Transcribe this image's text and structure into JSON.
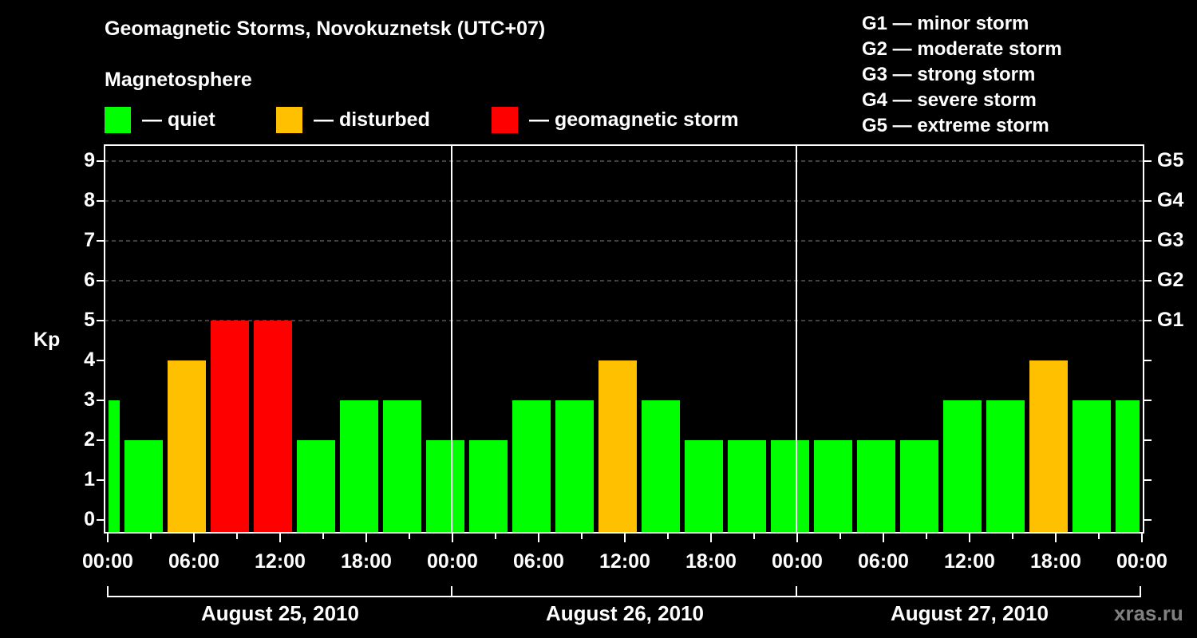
{
  "header": {
    "title": "Geomagnetic Storms, Novokuznetsk (UTC+07)",
    "subtitle": "Magnetosphere"
  },
  "legend": [
    {
      "label": "— quiet",
      "color": "#00FF00"
    },
    {
      "label": "— disturbed",
      "color": "#FFC000"
    },
    {
      "label": "— geomagnetic storm",
      "color": "#FF0000"
    }
  ],
  "g_scale": [
    "G1 — minor storm",
    "G2 — moderate storm",
    "G3 — strong storm",
    "G4 — severe storm",
    "G5 — extreme storm"
  ],
  "axes": {
    "y_label": "Kp",
    "y_ticks": [
      "0",
      "1",
      "2",
      "3",
      "4",
      "5",
      "6",
      "7",
      "8",
      "9"
    ],
    "y_right_ticks": [
      "G1",
      "G2",
      "G3",
      "G4",
      "G5"
    ],
    "x_ticks": [
      "00:00",
      "06:00",
      "12:00",
      "18:00",
      "00:00",
      "06:00",
      "12:00",
      "18:00",
      "00:00",
      "06:00",
      "12:00",
      "18:00",
      "00:00"
    ],
    "days": [
      "August 25, 2010",
      "August 26, 2010",
      "August 27, 2010"
    ]
  },
  "watermark": "xras.ru",
  "colors": {
    "quiet": "#00FF00",
    "disturbed": "#FFC000",
    "storm": "#FF0000",
    "background": "#000000",
    "grid": "#808080"
  },
  "chart_data": {
    "type": "bar",
    "title": "Geomagnetic Storms, Novokuznetsk (UTC+07)",
    "xlabel": "",
    "ylabel": "Kp",
    "ylim": [
      0,
      9
    ],
    "grid": "dashed horizontal at Kp 5-9",
    "legend_position": "top",
    "categories": [
      "Aug 25 00:00-01:00",
      "Aug 25 01:00",
      "Aug 25 04:00",
      "Aug 25 07:00",
      "Aug 25 10:00",
      "Aug 25 13:00",
      "Aug 25 16:00",
      "Aug 25 19:00",
      "Aug 25 22:00",
      "Aug 26 01:00",
      "Aug 26 04:00",
      "Aug 26 07:00",
      "Aug 26 10:00",
      "Aug 26 13:00",
      "Aug 26 16:00",
      "Aug 26 19:00",
      "Aug 26 22:00",
      "Aug 27 01:00",
      "Aug 27 04:00",
      "Aug 27 07:00",
      "Aug 27 10:00",
      "Aug 27 13:00",
      "Aug 27 16:00",
      "Aug 27 19:00",
      "Aug 27 22:00"
    ],
    "values": [
      3,
      2,
      4,
      5,
      5,
      2,
      3,
      3,
      2,
      2,
      3,
      3,
      4,
      3,
      2,
      2,
      2,
      2,
      2,
      2,
      3,
      3,
      4,
      3,
      3
    ],
    "status": [
      "quiet",
      "quiet",
      "disturbed",
      "storm",
      "storm",
      "quiet",
      "quiet",
      "quiet",
      "quiet",
      "quiet",
      "quiet",
      "quiet",
      "disturbed",
      "quiet",
      "quiet",
      "quiet",
      "quiet",
      "quiet",
      "quiet",
      "quiet",
      "quiet",
      "quiet",
      "disturbed",
      "quiet",
      "quiet"
    ],
    "right_axis": {
      "G1": 5,
      "G2": 6,
      "G3": 7,
      "G4": 8,
      "G5": 9
    }
  }
}
